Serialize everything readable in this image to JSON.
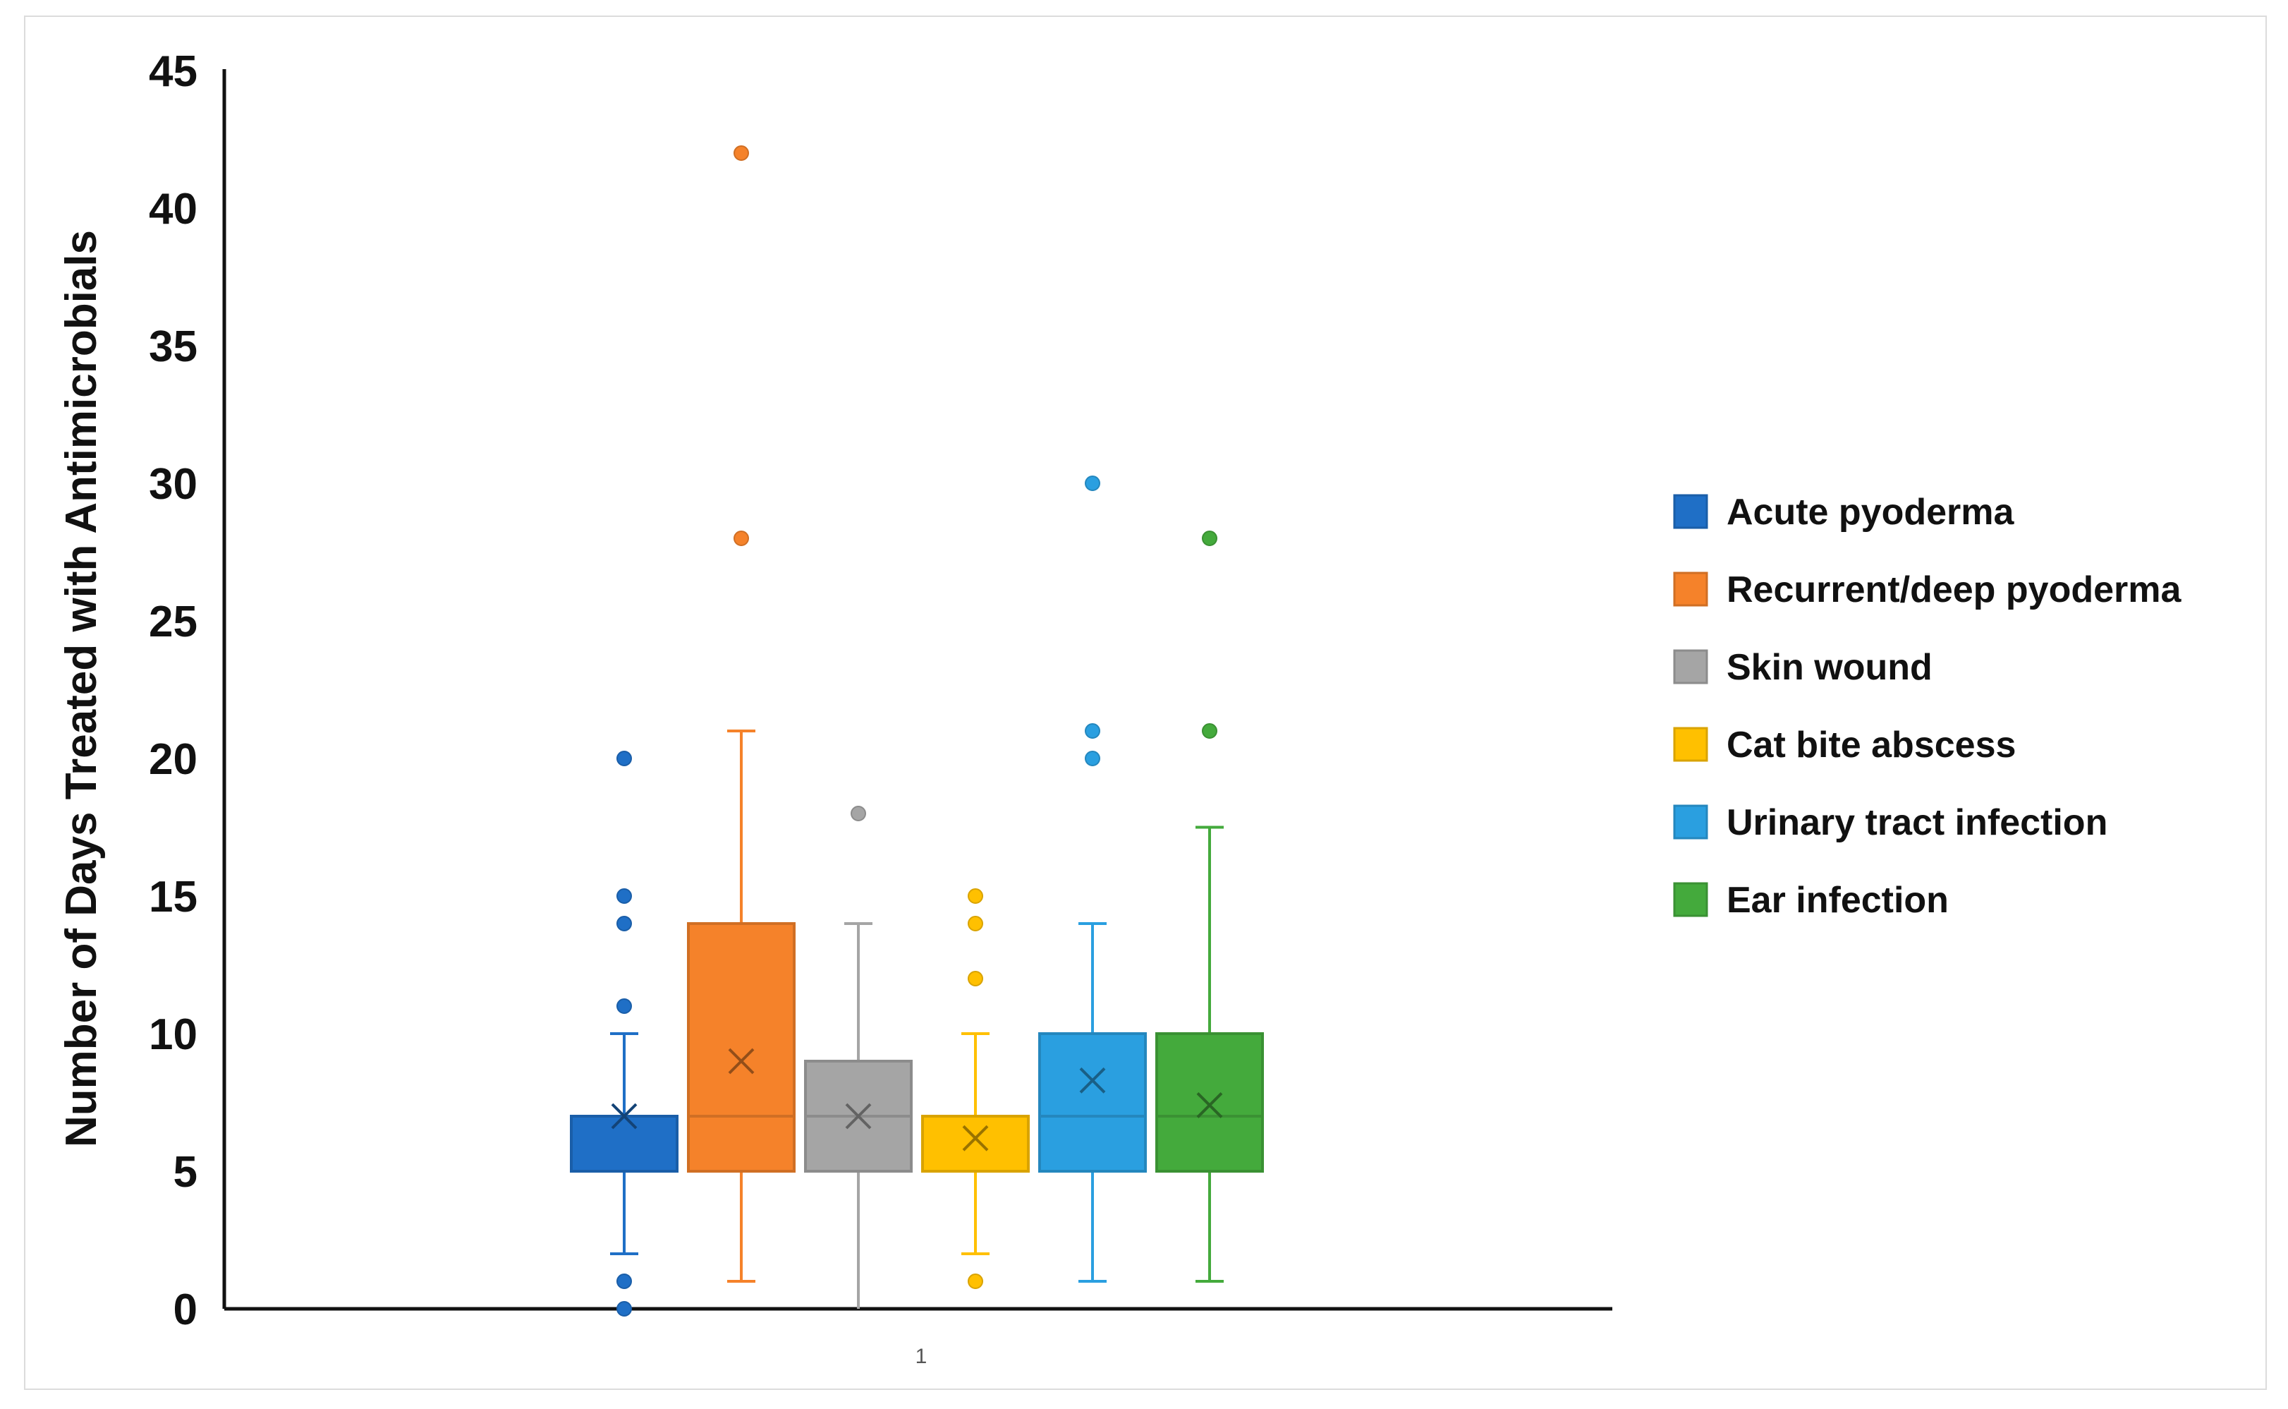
{
  "chart_data": {
    "type": "boxplot",
    "title": "",
    "xlabel": "",
    "ylabel": "Number of Days Treated with Antimicrobials",
    "ylim": [
      0,
      45
    ],
    "yticks": [
      0,
      5,
      10,
      15,
      20,
      25,
      30,
      35,
      40,
      45
    ],
    "categories": [
      "1"
    ],
    "grid": false,
    "legend_position": "right",
    "series": [
      {
        "name": "Acute pyoderma",
        "color": "#1f6fc6",
        "whisker_low": 2,
        "q1": 5,
        "median": 7,
        "q3": 7,
        "whisker_high": 10,
        "mean": 7,
        "outliers": [
          0,
          1,
          11,
          14,
          15,
          20
        ]
      },
      {
        "name": "Recurrent/deep pyoderma",
        "color": "#f5822a",
        "whisker_low": 1,
        "q1": 5,
        "median": 7,
        "q3": 14,
        "whisker_high": 21,
        "mean": 9,
        "outliers": [
          28,
          42
        ]
      },
      {
        "name": "Skin wound",
        "color": "#a5a5a5",
        "whisker_low": 0,
        "q1": 5,
        "median": 7,
        "q3": 9,
        "whisker_high": 14,
        "mean": 7,
        "outliers": [
          18
        ]
      },
      {
        "name": "Cat bite abscess",
        "color": "#ffc000",
        "whisker_low": 2,
        "q1": 5,
        "median": 7,
        "q3": 7,
        "whisker_high": 10,
        "mean": 6.2,
        "outliers": [
          1,
          12,
          14,
          15
        ]
      },
      {
        "name": "Urinary tract infection",
        "color": "#2a9fe0",
        "whisker_low": 1,
        "q1": 5,
        "median": 7,
        "q3": 10,
        "whisker_high": 14,
        "mean": 8.3,
        "outliers": [
          20,
          21,
          30
        ]
      },
      {
        "name": "Ear infection",
        "color": "#44aa3c",
        "whisker_low": 1,
        "q1": 5,
        "median": 7,
        "q3": 10,
        "whisker_high": 17.5,
        "mean": 7.4,
        "outliers": [
          21,
          28
        ]
      }
    ]
  }
}
